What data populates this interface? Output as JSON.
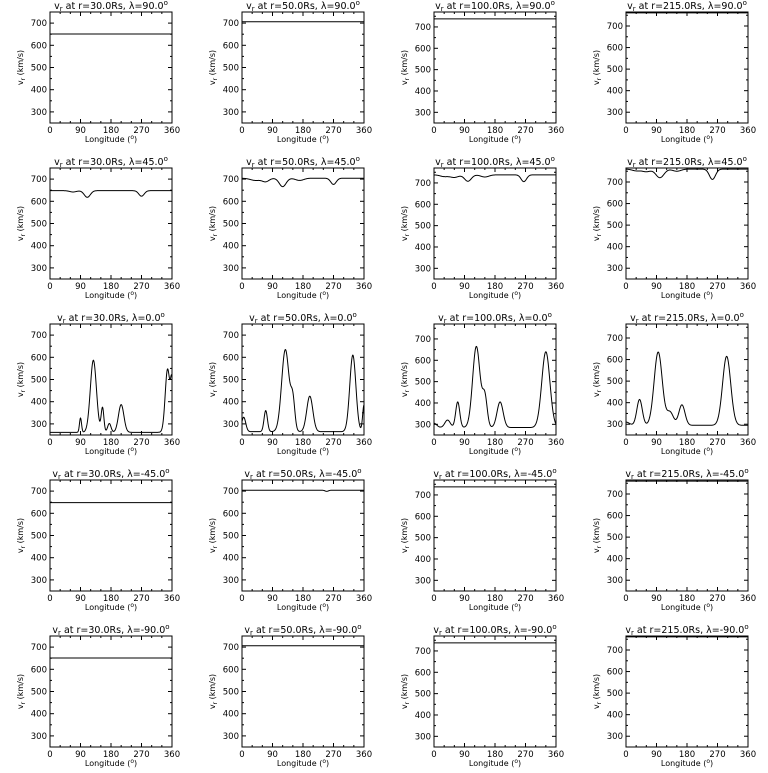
{
  "figure": {
    "background": "#ffffff",
    "line_color": "#000000"
  },
  "chart_data": [
    {
      "type": "line",
      "title": "v_r at r=30.0Rs, λ=90.0°",
      "r": "30.0Rs",
      "lat": "90.0",
      "xlabel": "Longitude (°)",
      "ylabel": "v_r (km/s)",
      "xlim": [
        0,
        360
      ],
      "ylim": [
        250,
        750
      ],
      "xticks": [
        0,
        90,
        180,
        270,
        360
      ],
      "xtick_labels": [
        "0",
        "90",
        "180",
        "270",
        "360"
      ],
      "yticks": [
        300,
        400,
        500,
        600,
        700
      ],
      "profile": "flat",
      "base": 651,
      "peaks": []
    },
    {
      "type": "line",
      "title": "v_r at r=50.0Rs, λ=90.0°",
      "r": "50.0Rs",
      "lat": "90.0",
      "xlabel": "Longitude (°)",
      "ylabel": "v_r (km/s)",
      "xlim": [
        0,
        360
      ],
      "ylim": [
        250,
        750
      ],
      "xticks": [
        0,
        90,
        180,
        270,
        360
      ],
      "xtick_labels": [
        "0",
        "90",
        "180",
        "270",
        "360"
      ],
      "yticks": [
        300,
        400,
        500,
        600,
        700
      ],
      "profile": "flat",
      "base": 706,
      "peaks": []
    },
    {
      "type": "line",
      "title": "v_r at r=100.0Rs, λ=90.0°",
      "r": "100.0Rs",
      "lat": "90.0",
      "xlabel": "Longitude (°)",
      "ylabel": "v_r (km/s)",
      "xlim": [
        0,
        360
      ],
      "ylim": [
        250,
        770
      ],
      "xticks": [
        0,
        90,
        180,
        270,
        360
      ],
      "xtick_labels": [
        "0",
        "90",
        "180",
        "270",
        "360"
      ],
      "yticks": [
        300,
        400,
        500,
        600,
        700
      ],
      "profile": "flat",
      "base": 738,
      "peaks": []
    },
    {
      "type": "line",
      "title": "v_r at r=215.0Rs, λ=90.0°",
      "r": "215.0Rs",
      "lat": "90.0",
      "xlabel": "Longitude (°)",
      "ylabel": "v_r (km/s)",
      "xlim": [
        0,
        360
      ],
      "ylim": [
        250,
        765
      ],
      "xticks": [
        0,
        90,
        180,
        270,
        360
      ],
      "xtick_labels": [
        "0",
        "90",
        "180",
        "270",
        "360"
      ],
      "yticks": [
        300,
        400,
        500,
        600,
        700
      ],
      "profile": "flat",
      "base": 761,
      "peaks": []
    },
    {
      "type": "line",
      "title": "v_r at r=30.0Rs, λ=45.0°",
      "r": "30.0Rs",
      "lat": "45.0",
      "xlabel": "Longitude (°)",
      "ylabel": "v_r (km/s)",
      "xlim": [
        0,
        360
      ],
      "ylim": [
        250,
        750
      ],
      "xticks": [
        0,
        90,
        180,
        270,
        360
      ],
      "xtick_labels": [
        "0",
        "90",
        "180",
        "270",
        "360"
      ],
      "yticks": [
        300,
        400,
        500,
        600,
        700
      ],
      "profile": "dips",
      "base": 648,
      "peaks": [
        [
          68,
          -6,
          10
        ],
        [
          110,
          -30,
          9
        ],
        [
          270,
          -25,
          8
        ]
      ]
    },
    {
      "type": "line",
      "title": "v_r at r=50.0Rs, λ=45.0°",
      "r": "50.0Rs",
      "lat": "45.0",
      "xlabel": "Longitude (°)",
      "ylabel": "v_r (km/s)",
      "xlim": [
        0,
        360
      ],
      "ylim": [
        250,
        750
      ],
      "xticks": [
        0,
        90,
        180,
        270,
        360
      ],
      "xtick_labels": [
        "0",
        "90",
        "180",
        "270",
        "360"
      ],
      "yticks": [
        300,
        400,
        500,
        600,
        700
      ],
      "profile": "dips",
      "base": 704,
      "peaks": [
        [
          40,
          -10,
          15
        ],
        [
          70,
          -15,
          10
        ],
        [
          120,
          -38,
          10
        ],
        [
          170,
          -10,
          12
        ],
        [
          270,
          -28,
          8
        ]
      ]
    },
    {
      "type": "line",
      "title": "v_r at r=100.0Rs, λ=45.0°",
      "r": "100.0Rs",
      "lat": "45.0",
      "xlabel": "Longitude (°)",
      "ylabel": "v_r (km/s)",
      "xlim": [
        0,
        360
      ],
      "ylim": [
        250,
        770
      ],
      "xticks": [
        0,
        90,
        180,
        270,
        360
      ],
      "xtick_labels": [
        "0",
        "90",
        "180",
        "270",
        "360"
      ],
      "yticks": [
        300,
        400,
        500,
        600,
        700
      ],
      "profile": "dips",
      "base": 738,
      "peaks": [
        [
          30,
          -8,
          12
        ],
        [
          60,
          -12,
          12
        ],
        [
          100,
          -30,
          10
        ],
        [
          150,
          -10,
          12
        ],
        [
          265,
          -32,
          8
        ]
      ]
    },
    {
      "type": "line",
      "title": "v_r at r=215.0Rs, λ=45.0°",
      "r": "215.0Rs",
      "lat": "45.0",
      "xlabel": "Longitude (°)",
      "ylabel": "v_r (km/s)",
      "xlim": [
        0,
        360
      ],
      "ylim": [
        250,
        765
      ],
      "xticks": [
        0,
        90,
        180,
        270,
        360
      ],
      "xtick_labels": [
        "0",
        "90",
        "180",
        "270",
        "360"
      ],
      "yticks": [
        300,
        400,
        500,
        600,
        700
      ],
      "profile": "dips",
      "base": 760,
      "peaks": [
        [
          30,
          -8,
          12
        ],
        [
          60,
          -12,
          12
        ],
        [
          100,
          -40,
          12
        ],
        [
          150,
          -10,
          12
        ],
        [
          255,
          -48,
          9
        ]
      ]
    },
    {
      "type": "line",
      "title": "v_r at r=30.0Rs, λ=0.0°",
      "r": "30.0Rs",
      "lat": "0.0",
      "xlabel": "Longitude (°)",
      "ylabel": "v_r (km/s)",
      "xlim": [
        0,
        360
      ],
      "ylim": [
        250,
        750
      ],
      "xticks": [
        0,
        90,
        180,
        270,
        360
      ],
      "xtick_labels": [
        "0",
        "90",
        "180",
        "270",
        "360"
      ],
      "yticks": [
        300,
        400,
        500,
        600,
        700
      ],
      "profile": "peaks",
      "base": 262,
      "peaks": [
        [
          90,
          65,
          3
        ],
        [
          128,
          325,
          9
        ],
        [
          155,
          110,
          4
        ],
        [
          175,
          40,
          5
        ],
        [
          210,
          125,
          8
        ],
        [
          347,
          285,
          7
        ],
        [
          360,
          200,
          4
        ]
      ]
    },
    {
      "type": "line",
      "title": "v_r at r=50.0Rs, λ=0.0°",
      "r": "50.0Rs",
      "lat": "0.0",
      "xlabel": "Longitude (°)",
      "ylabel": "v_r (km/s)",
      "xlim": [
        0,
        360
      ],
      "ylim": [
        250,
        750
      ],
      "xticks": [
        0,
        90,
        180,
        270,
        360
      ],
      "xtick_labels": [
        "0",
        "90",
        "180",
        "270",
        "360"
      ],
      "yticks": [
        300,
        400,
        500,
        600,
        700
      ],
      "profile": "peaks",
      "base": 265,
      "peaks": [
        [
          5,
          65,
          6
        ],
        [
          70,
          95,
          5
        ],
        [
          128,
          370,
          11
        ],
        [
          150,
          130,
          6
        ],
        [
          200,
          160,
          9
        ],
        [
          327,
          345,
          9
        ],
        [
          360,
          120,
          4
        ]
      ]
    },
    {
      "type": "line",
      "title": "v_r at r=100.0Rs, λ=0.0°",
      "r": "100.0Rs",
      "lat": "0.0",
      "xlabel": "Longitude (°)",
      "ylabel": "v_r (km/s)",
      "xlim": [
        0,
        360
      ],
      "ylim": [
        250,
        770
      ],
      "xticks": [
        0,
        90,
        180,
        270,
        360
      ],
      "xtick_labels": [
        "0",
        "90",
        "180",
        "270",
        "360"
      ],
      "yticks": [
        300,
        400,
        500,
        600,
        700
      ],
      "profile": "peaks",
      "base": 285,
      "peaks": [
        [
          0,
          20,
          8
        ],
        [
          40,
          35,
          8
        ],
        [
          70,
          120,
          6
        ],
        [
          125,
          380,
          11
        ],
        [
          150,
          140,
          7
        ],
        [
          195,
          120,
          9
        ],
        [
          330,
          355,
          12
        ]
      ]
    },
    {
      "type": "line",
      "title": "v_r at r=215.0Rs, λ=0.0°",
      "r": "215.0Rs",
      "lat": "0.0",
      "xlabel": "Longitude (°)",
      "ylabel": "v_r (km/s)",
      "xlim": [
        0,
        360
      ],
      "ylim": [
        250,
        765
      ],
      "xticks": [
        0,
        90,
        180,
        270,
        360
      ],
      "xtick_labels": [
        "0",
        "90",
        "180",
        "270",
        "360"
      ],
      "yticks": [
        300,
        400,
        500,
        600,
        700
      ],
      "profile": "peaks",
      "base": 295,
      "peaks": [
        [
          0,
          15,
          10
        ],
        [
          40,
          120,
          8
        ],
        [
          95,
          340,
          12
        ],
        [
          130,
          60,
          10
        ],
        [
          165,
          95,
          9
        ],
        [
          297,
          320,
          12
        ]
      ]
    },
    {
      "type": "line",
      "title": "v_r at r=30.0Rs, λ=-45.0°",
      "r": "30.0Rs",
      "lat": "-45.0",
      "xlabel": "Longitude (°)",
      "ylabel": "v_r (km/s)",
      "xlim": [
        0,
        360
      ],
      "ylim": [
        250,
        750
      ],
      "xticks": [
        0,
        90,
        180,
        270,
        360
      ],
      "xtick_labels": [
        "0",
        "90",
        "180",
        "270",
        "360"
      ],
      "yticks": [
        300,
        400,
        500,
        600,
        700
      ],
      "profile": "flat",
      "base": 648,
      "peaks": []
    },
    {
      "type": "line",
      "title": "v_r at r=50.0Rs, λ=-45.0°",
      "r": "50.0Rs",
      "lat": "-45.0",
      "xlabel": "Longitude (°)",
      "ylabel": "v_r (km/s)",
      "xlim": [
        0,
        360
      ],
      "ylim": [
        250,
        750
      ],
      "xticks": [
        0,
        90,
        180,
        270,
        360
      ],
      "xtick_labels": [
        "0",
        "90",
        "180",
        "270",
        "360"
      ],
      "yticks": [
        300,
        400,
        500,
        600,
        700
      ],
      "profile": "flat",
      "base": 704,
      "peaks": [
        [
          250,
          -5,
          5
        ]
      ]
    },
    {
      "type": "line",
      "title": "v_r at r=100.0Rs, λ=-45.0°",
      "r": "100.0Rs",
      "lat": "-45.0",
      "xlabel": "Longitude (°)",
      "ylabel": "v_r (km/s)",
      "xlim": [
        0,
        360
      ],
      "ylim": [
        250,
        770
      ],
      "xticks": [
        0,
        90,
        180,
        270,
        360
      ],
      "xtick_labels": [
        "0",
        "90",
        "180",
        "270",
        "360"
      ],
      "yticks": [
        300,
        400,
        500,
        600,
        700
      ],
      "profile": "flat",
      "base": 738,
      "peaks": []
    },
    {
      "type": "line",
      "title": "v_r at r=215.0Rs, λ=-45.0°",
      "r": "215.0Rs",
      "lat": "-45.0",
      "xlabel": "Longitude (°)",
      "ylabel": "v_r (km/s)",
      "xlim": [
        0,
        360
      ],
      "ylim": [
        250,
        765
      ],
      "xticks": [
        0,
        90,
        180,
        270,
        360
      ],
      "xtick_labels": [
        "0",
        "90",
        "180",
        "270",
        "360"
      ],
      "yticks": [
        300,
        400,
        500,
        600,
        700
      ],
      "profile": "flat",
      "base": 760,
      "peaks": []
    },
    {
      "type": "line",
      "title": "v_r at r=30.0Rs, λ=-90.0°",
      "r": "30.0Rs",
      "lat": "-90.0",
      "xlabel": "Longitude (°)",
      "ylabel": "v_r (km/s)",
      "xlim": [
        0,
        360
      ],
      "ylim": [
        250,
        750
      ],
      "xticks": [
        0,
        90,
        180,
        270,
        360
      ],
      "xtick_labels": [
        "0",
        "90",
        "180",
        "270",
        "360"
      ],
      "yticks": [
        300,
        400,
        500,
        600,
        700
      ],
      "profile": "flat",
      "base": 651,
      "peaks": []
    },
    {
      "type": "line",
      "title": "v_r at r=50.0Rs, λ=-90.0°",
      "r": "50.0Rs",
      "lat": "-90.0",
      "xlabel": "Longitude (°)",
      "ylabel": "v_r (km/s)",
      "xlim": [
        0,
        360
      ],
      "ylim": [
        250,
        750
      ],
      "xticks": [
        0,
        90,
        180,
        270,
        360
      ],
      "xtick_labels": [
        "0",
        "90",
        "180",
        "270",
        "360"
      ],
      "yticks": [
        300,
        400,
        500,
        600,
        700
      ],
      "profile": "flat",
      "base": 706,
      "peaks": []
    },
    {
      "type": "line",
      "title": "v_r at r=100.0Rs, λ=-90.0°",
      "r": "100.0Rs",
      "lat": "-90.0",
      "xlabel": "Longitude (°)",
      "ylabel": "v_r (km/s)",
      "xlim": [
        0,
        360
      ],
      "ylim": [
        250,
        770
      ],
      "xticks": [
        0,
        90,
        180,
        270,
        360
      ],
      "xtick_labels": [
        "0",
        "90",
        "180",
        "270",
        "360"
      ],
      "yticks": [
        300,
        400,
        500,
        600,
        700
      ],
      "profile": "flat",
      "base": 738,
      "peaks": []
    },
    {
      "type": "line",
      "title": "v_r at r=215.0Rs, λ=-90.0°",
      "r": "215.0Rs",
      "lat": "-90.0",
      "xlabel": "Longitude (°)",
      "ylabel": "v_r (km/s)",
      "xlim": [
        0,
        360
      ],
      "ylim": [
        250,
        765
      ],
      "xticks": [
        0,
        90,
        180,
        270,
        360
      ],
      "xtick_labels": [
        "0",
        "90",
        "180",
        "270",
        "360"
      ],
      "yticks": [
        300,
        400,
        500,
        600,
        700
      ],
      "profile": "flat",
      "base": 761,
      "peaks": []
    }
  ]
}
